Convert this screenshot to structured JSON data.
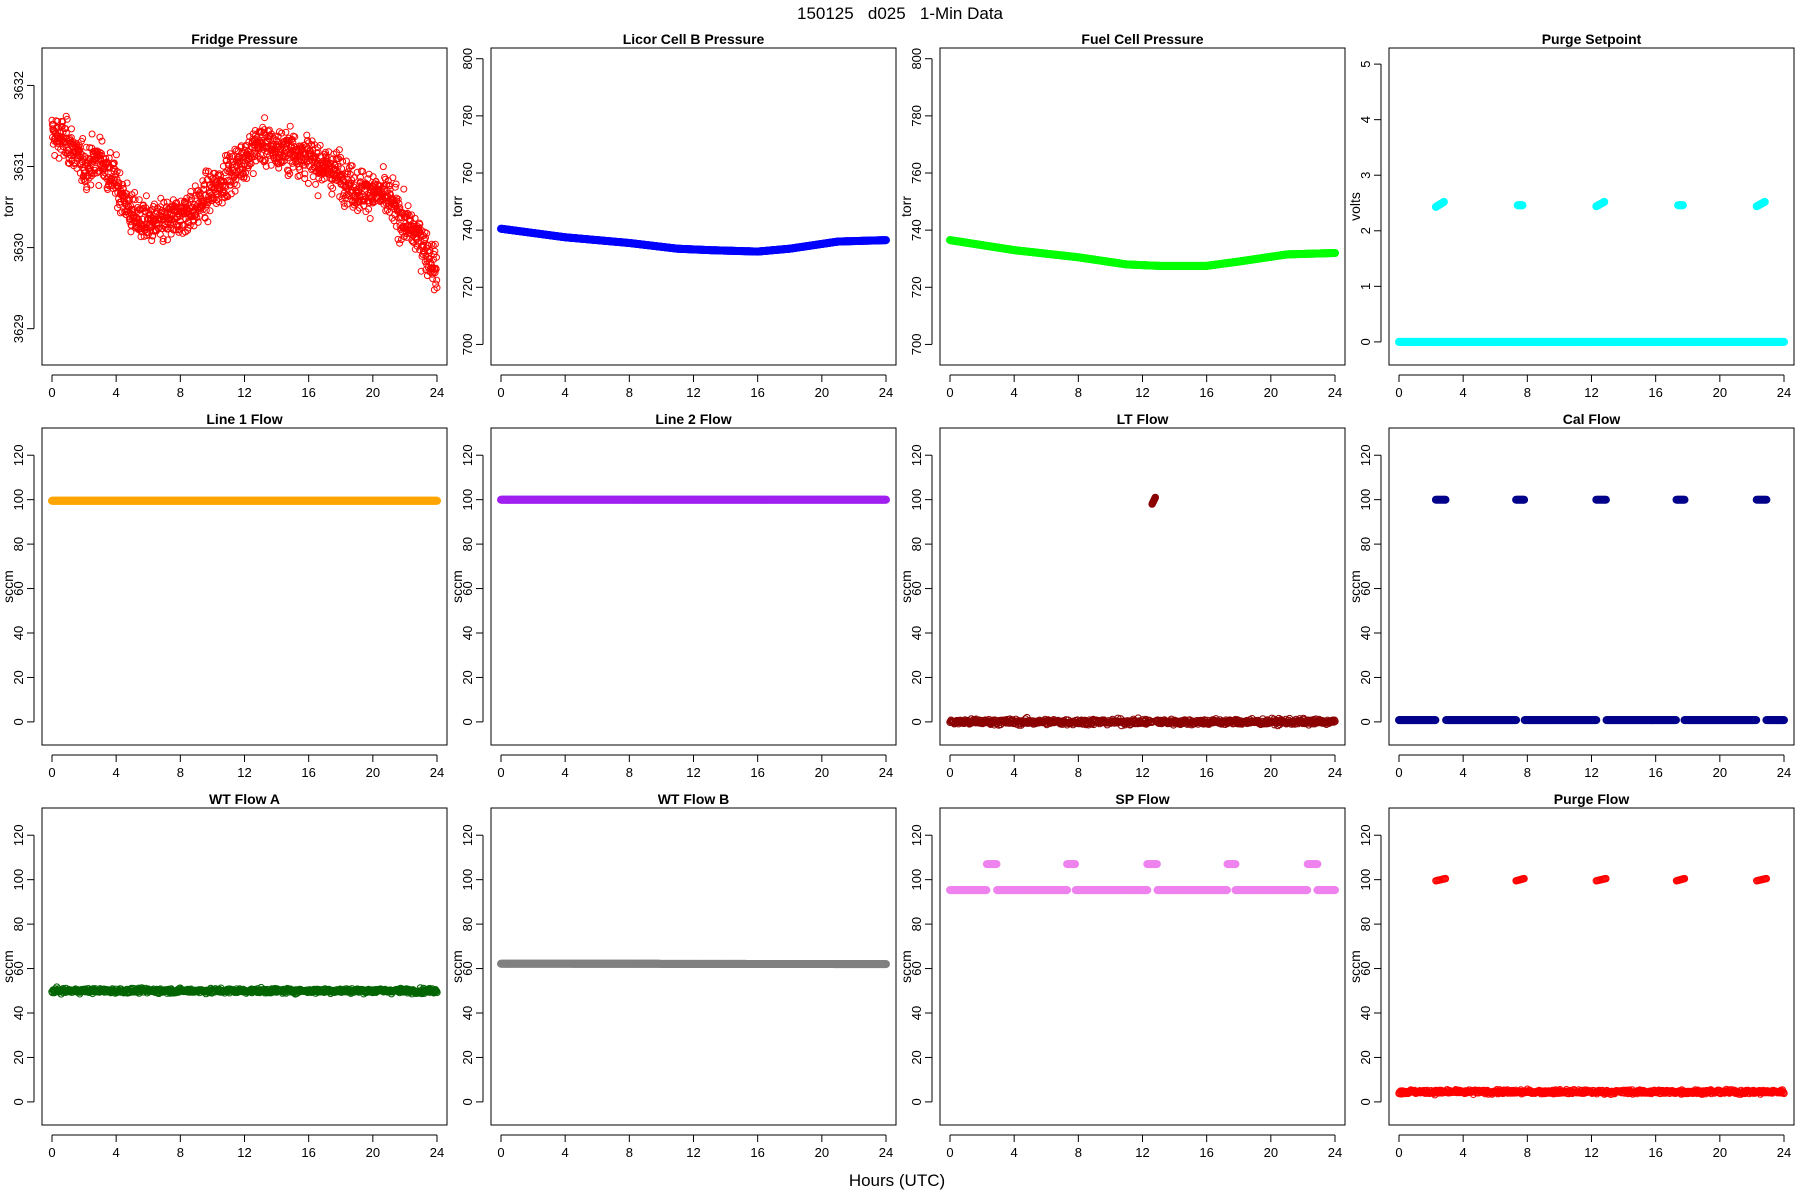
{
  "figure": {
    "title": "150125   d025   1-Min Data",
    "xlabel": "Hours (UTC)"
  },
  "chart_data": [
    {
      "type": "scatter",
      "title": "Fridge Pressure",
      "ylabel": "torr",
      "xlim": [
        0,
        24
      ],
      "ylim": [
        3628.7,
        3632.4
      ],
      "xticks": [
        0,
        4,
        8,
        12,
        16,
        20,
        24
      ],
      "yticks": [
        3629,
        3630,
        3631,
        3632
      ],
      "color": "#ff0000",
      "style": "noise",
      "profile": [
        [
          0,
          3631.4
        ],
        [
          1,
          3631.3
        ],
        [
          2,
          3631.0
        ],
        [
          3,
          3631.1
        ],
        [
          4,
          3630.8
        ],
        [
          5,
          3630.4
        ],
        [
          6,
          3630.3
        ],
        [
          7,
          3630.3
        ],
        [
          8,
          3630.4
        ],
        [
          9,
          3630.5
        ],
        [
          10,
          3630.7
        ],
        [
          11,
          3630.9
        ],
        [
          12,
          3631.1
        ],
        [
          13,
          3631.3
        ],
        [
          14,
          3631.2
        ],
        [
          15,
          3631.2
        ],
        [
          16,
          3631.1
        ],
        [
          17,
          3631.0
        ],
        [
          18,
          3630.9
        ],
        [
          19,
          3630.7
        ],
        [
          20,
          3630.7
        ],
        [
          21,
          3630.6
        ],
        [
          22,
          3630.3
        ],
        [
          23,
          3630.1
        ],
        [
          24,
          3629.7
        ]
      ],
      "noise": 0.4
    },
    {
      "type": "scatter",
      "title": "Licor Cell B Pressure",
      "ylabel": "torr",
      "xlim": [
        0,
        24
      ],
      "ylim": [
        697,
        802
      ],
      "xticks": [
        0,
        4,
        8,
        12,
        16,
        20,
        24
      ],
      "yticks": [
        700,
        720,
        740,
        760,
        780,
        800
      ],
      "color": "#0000ff",
      "style": "thick",
      "profile": [
        [
          0,
          740.5
        ],
        [
          4,
          737.5
        ],
        [
          8,
          735.5
        ],
        [
          11,
          733.5
        ],
        [
          13,
          733.0
        ],
        [
          16,
          732.5
        ],
        [
          18,
          733.5
        ],
        [
          21,
          736.0
        ],
        [
          24,
          736.5
        ]
      ],
      "noise": 0
    },
    {
      "type": "scatter",
      "title": "Fuel Cell Pressure",
      "ylabel": "torr",
      "xlim": [
        0,
        24
      ],
      "ylim": [
        697,
        802
      ],
      "xticks": [
        0,
        4,
        8,
        12,
        16,
        20,
        24
      ],
      "yticks": [
        700,
        720,
        740,
        760,
        780,
        800
      ],
      "color": "#00ff00",
      "style": "thick",
      "profile": [
        [
          0,
          736.5
        ],
        [
          4,
          733.0
        ],
        [
          8,
          730.5
        ],
        [
          11,
          728.0
        ],
        [
          13,
          727.5
        ],
        [
          16,
          727.5
        ],
        [
          18,
          729.0
        ],
        [
          21,
          731.5
        ],
        [
          24,
          732.0
        ]
      ],
      "noise": 0
    },
    {
      "type": "scatter",
      "title": "Purge Setpoint",
      "ylabel": "volts",
      "xlim": [
        0,
        24
      ],
      "ylim": [
        -0.2,
        5.2
      ],
      "xticks": [
        0,
        4,
        8,
        12,
        16,
        20,
        24
      ],
      "yticks": [
        0,
        1,
        2,
        3,
        4,
        5
      ],
      "color": "#00ffff",
      "style": "thick",
      "profile": [
        [
          0,
          0
        ],
        [
          24,
          0
        ]
      ],
      "noise": 0,
      "bursts": [
        {
          "x": [
            2.3,
            2.8
          ],
          "y": [
            2.43,
            2.52
          ]
        },
        {
          "x": [
            7.4,
            7.7
          ],
          "y": [
            2.46,
            2.46
          ]
        },
        {
          "x": [
            12.3,
            12.8
          ],
          "y": [
            2.44,
            2.52
          ]
        },
        {
          "x": [
            17.4,
            17.7
          ],
          "y": [
            2.46,
            2.46
          ]
        },
        {
          "x": [
            22.3,
            22.8
          ],
          "y": [
            2.44,
            2.52
          ]
        }
      ]
    },
    {
      "type": "scatter",
      "title": "Line 1 Flow",
      "ylabel": "sccm",
      "xlim": [
        0,
        24
      ],
      "ylim": [
        -5,
        130
      ],
      "xticks": [
        0,
        4,
        8,
        12,
        16,
        20,
        24
      ],
      "yticks": [
        0,
        20,
        40,
        60,
        80,
        100,
        120
      ],
      "color": "#ffa500",
      "style": "thick",
      "profile": [
        [
          0,
          99.5
        ],
        [
          24,
          99.5
        ]
      ],
      "noise": 0
    },
    {
      "type": "scatter",
      "title": "Line 2 Flow",
      "ylabel": "sccm",
      "xlim": [
        0,
        24
      ],
      "ylim": [
        -5,
        130
      ],
      "xticks": [
        0,
        4,
        8,
        12,
        16,
        20,
        24
      ],
      "yticks": [
        0,
        20,
        40,
        60,
        80,
        100,
        120
      ],
      "color": "#a020f0",
      "style": "thick",
      "profile": [
        [
          0,
          100
        ],
        [
          24,
          100
        ]
      ],
      "noise": 0
    },
    {
      "type": "scatter",
      "title": "LT Flow",
      "ylabel": "sccm",
      "xlim": [
        0,
        24
      ],
      "ylim": [
        -5,
        130
      ],
      "xticks": [
        0,
        4,
        8,
        12,
        16,
        20,
        24
      ],
      "yticks": [
        0,
        20,
        40,
        60,
        80,
        100,
        120
      ],
      "color": "#8b0000",
      "style": "band",
      "profile": [
        [
          0,
          0
        ],
        [
          24,
          0
        ]
      ],
      "noise": 2,
      "gaps": [
        [
          12.6,
          12.8
        ]
      ],
      "bursts": [
        {
          "x": [
            12.6,
            12.8
          ],
          "y": [
            98,
            101
          ]
        }
      ]
    },
    {
      "type": "scatter",
      "title": "Cal Flow",
      "ylabel": "sccm",
      "xlim": [
        0,
        24
      ],
      "ylim": [
        -5,
        130
      ],
      "xticks": [
        0,
        4,
        8,
        12,
        16,
        20,
        24
      ],
      "yticks": [
        0,
        20,
        40,
        60,
        80,
        100,
        120
      ],
      "color": "#00008b",
      "style": "thick",
      "profile": [
        [
          0,
          0.8
        ],
        [
          24,
          0.8
        ]
      ],
      "noise": 0,
      "gaps": [
        [
          2.3,
          2.9
        ],
        [
          7.3,
          7.8
        ],
        [
          12.3,
          12.9
        ],
        [
          17.3,
          17.8
        ],
        [
          22.3,
          22.9
        ]
      ],
      "bursts": [
        {
          "x": [
            2.3,
            2.9
          ],
          "y": [
            100,
            100
          ]
        },
        {
          "x": [
            7.3,
            7.8
          ],
          "y": [
            100,
            100
          ]
        },
        {
          "x": [
            12.3,
            12.9
          ],
          "y": [
            100,
            100
          ]
        },
        {
          "x": [
            17.3,
            17.8
          ],
          "y": [
            100,
            100
          ]
        },
        {
          "x": [
            22.3,
            22.9
          ],
          "y": [
            100,
            100
          ]
        }
      ]
    },
    {
      "type": "scatter",
      "title": "WT Flow A",
      "ylabel": "sccm",
      "xlim": [
        0,
        24
      ],
      "ylim": [
        -5,
        130
      ],
      "xticks": [
        0,
        4,
        8,
        12,
        16,
        20,
        24
      ],
      "yticks": [
        0,
        20,
        40,
        60,
        80,
        100,
        120
      ],
      "color": "#006400",
      "style": "band",
      "profile": [
        [
          0,
          50
        ],
        [
          24,
          50
        ]
      ],
      "noise": 1.6
    },
    {
      "type": "scatter",
      "title": "WT Flow B",
      "ylabel": "sccm",
      "xlim": [
        0,
        24
      ],
      "ylim": [
        -5,
        130
      ],
      "xticks": [
        0,
        4,
        8,
        12,
        16,
        20,
        24
      ],
      "yticks": [
        0,
        20,
        40,
        60,
        80,
        100,
        120
      ],
      "color": "#808080",
      "style": "thick",
      "profile": [
        [
          0,
          62.2
        ],
        [
          24,
          62.0
        ]
      ],
      "noise": 0
    },
    {
      "type": "scatter",
      "title": "SP Flow",
      "ylabel": "sccm",
      "xlim": [
        0,
        24
      ],
      "ylim": [
        -5,
        130
      ],
      "xticks": [
        0,
        4,
        8,
        12,
        16,
        20,
        24
      ],
      "yticks": [
        0,
        20,
        40,
        60,
        80,
        100,
        120
      ],
      "color": "#ee82ee",
      "style": "thick",
      "profile": [
        [
          0,
          95.3
        ],
        [
          24,
          95.3
        ]
      ],
      "noise": 0,
      "gaps": [
        [
          2.3,
          2.9
        ],
        [
          7.3,
          7.8
        ],
        [
          12.3,
          12.9
        ],
        [
          17.3,
          17.8
        ],
        [
          22.3,
          22.9
        ]
      ],
      "bursts": [
        {
          "x": [
            2.3,
            2.9
          ],
          "y": [
            107,
            107
          ]
        },
        {
          "x": [
            7.3,
            7.8
          ],
          "y": [
            107,
            107
          ]
        },
        {
          "x": [
            12.3,
            12.9
          ],
          "y": [
            107,
            107
          ]
        },
        {
          "x": [
            17.3,
            17.8
          ],
          "y": [
            107,
            107
          ]
        },
        {
          "x": [
            22.3,
            22.9
          ],
          "y": [
            107,
            107
          ]
        }
      ]
    },
    {
      "type": "scatter",
      "title": "Purge Flow",
      "ylabel": "sccm",
      "xlim": [
        0,
        24
      ],
      "ylim": [
        -5,
        130
      ],
      "xticks": [
        0,
        4,
        8,
        12,
        16,
        20,
        24
      ],
      "yticks": [
        0,
        20,
        40,
        60,
        80,
        100,
        120
      ],
      "color": "#ff0000",
      "style": "band",
      "profile": [
        [
          0,
          4.5
        ],
        [
          24,
          4.5
        ]
      ],
      "noise": 1.4,
      "bursts": [
        {
          "x": [
            2.3,
            2.9
          ],
          "y": [
            99.5,
            100.5
          ]
        },
        {
          "x": [
            7.3,
            7.8
          ],
          "y": [
            99.5,
            100.5
          ]
        },
        {
          "x": [
            12.3,
            12.9
          ],
          "y": [
            99.5,
            100.5
          ]
        },
        {
          "x": [
            17.3,
            17.8
          ],
          "y": [
            99.5,
            100.5
          ]
        },
        {
          "x": [
            22.3,
            22.9
          ],
          "y": [
            99.5,
            100.5
          ]
        }
      ]
    }
  ]
}
